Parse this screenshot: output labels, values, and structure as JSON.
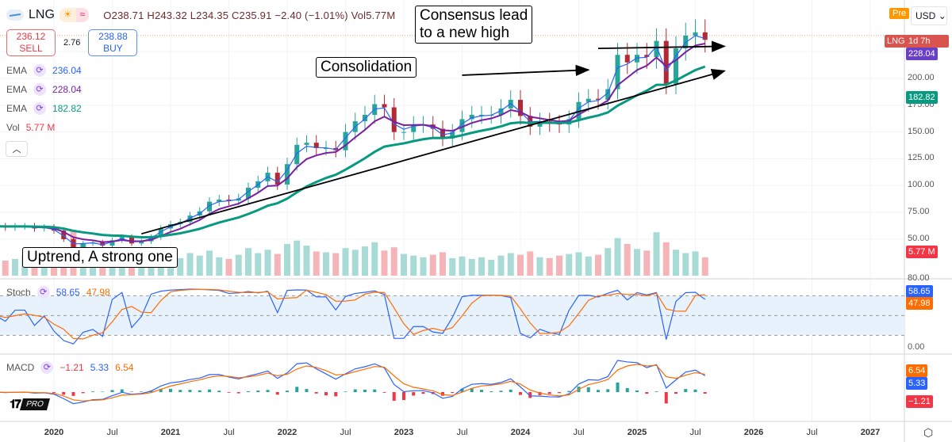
{
  "header": {
    "symbol": "LNG",
    "open": "O238.71",
    "high": "H243.32",
    "low": "L234.35",
    "close": "C235.91",
    "change": "−2.40 (−1.01%)",
    "volume": "Vol5.77M",
    "icons": [
      "sun-icon",
      "wave-icon"
    ]
  },
  "trade": {
    "sell_price": "236.12",
    "sell_label": "SELL",
    "spread": "2.76",
    "buy_price": "238.88",
    "buy_label": "BUY"
  },
  "legend": {
    "ema1_label": "EMA",
    "ema1": "236.04",
    "ema2_label": "EMA",
    "ema2": "228.04",
    "ema3_label": "EMA",
    "ema3": "182.82",
    "vol_label": "Vol",
    "vol": "5.77 M",
    "stoch_label": "Stoch",
    "stoch_k": "58.65",
    "stoch_d": "47.98",
    "macd_label": "MACD",
    "macd_hist": "−1.21",
    "macd_line": "5.33",
    "macd_signal": "6.54"
  },
  "annotations": {
    "consensus": "Consensus lead\nto a new high",
    "consolidation": "Consolidation",
    "uptrend": "Uptrend, A strong one"
  },
  "right_axis": {
    "pre_badge": "Pre",
    "currency": "USD",
    "sym_tag": "LNG",
    "countdown": "1d 7h",
    "ema2_tag": "228.04",
    "ema3_tag": "182.82",
    "vol_tag": "5.77 M",
    "stoch_k_tag": "58.65",
    "stoch_d_tag": "47.98",
    "macd_signal_tag": "6.54",
    "macd_line_tag": "5.33",
    "macd_hist_tag": "−1.21"
  },
  "branding": {
    "logo_text": "17",
    "pro": "PRO"
  },
  "colors": {
    "up": "#26a69a",
    "down": "#b22833",
    "ema1": "#2962ff",
    "ema2": "#7b1fa2",
    "ema3": "#089981",
    "stoch_k": "#2962ff",
    "stoch_d": "#ff6d00"
  },
  "chart_data": {
    "type": "candlestick",
    "title": "LNG",
    "interval": "monthly approximation",
    "start": "2019-07",
    "price_ticks": [
      50,
      75,
      100,
      125,
      150,
      175,
      200
    ],
    "stoch_ticks": [
      "80.00",
      "0.00"
    ],
    "x_ticks": [
      "2020",
      "Jul",
      "2021",
      "Jul",
      "2022",
      "Jul",
      "2023",
      "Jul",
      "2024",
      "Jul",
      "2025",
      "Jul",
      "2026",
      "Jul",
      "2027"
    ],
    "x_tick_years": [
      2020,
      2020.5,
      2021,
      2021.5,
      2022,
      2022.5,
      2023,
      2023.5,
      2024,
      2024.5,
      2025,
      2025.5,
      2026,
      2026.5,
      2027
    ],
    "close": [
      62,
      61,
      62,
      62,
      60,
      61,
      58,
      50,
      42,
      46,
      47,
      44,
      49,
      52,
      46,
      48,
      52,
      60,
      64,
      66,
      72,
      76,
      85,
      87,
      86,
      88,
      98,
      104,
      112,
      101,
      120,
      138,
      140,
      135,
      135,
      133,
      150,
      160,
      166,
      176,
      173,
      150,
      150,
      157,
      157,
      153,
      144,
      150,
      162,
      166,
      166,
      166,
      172,
      180,
      165,
      155,
      160,
      158,
      157,
      162,
      178,
      181,
      180,
      190,
      222,
      215,
      222,
      220,
      235,
      195,
      228,
      240,
      243,
      236
    ],
    "volume": [
      22,
      18,
      20,
      25,
      17,
      19,
      24,
      30,
      55,
      38,
      28,
      22,
      20,
      18,
      24,
      21,
      19,
      26,
      23,
      21,
      27,
      24,
      30,
      22,
      20,
      25,
      33,
      27,
      31,
      26,
      38,
      42,
      36,
      29,
      28,
      27,
      33,
      31,
      35,
      40,
      30,
      34,
      26,
      24,
      22,
      25,
      28,
      21,
      23,
      20,
      22,
      19,
      24,
      27,
      25,
      29,
      22,
      21,
      24,
      26,
      28,
      23,
      25,
      33,
      45,
      38,
      32,
      30,
      52,
      40,
      31,
      27,
      29,
      22
    ],
    "trendlines": [
      {
        "name": "uptrend-line",
        "from": [
          "2020-10",
          55
        ],
        "to": [
          "2025-10",
          207
        ]
      },
      {
        "name": "consensus-arrow",
        "from": [
          "2024-09",
          228
        ],
        "to": [
          "2025-10",
          230
        ]
      },
      {
        "name": "consolidation-arrow",
        "from": [
          "2023-07",
          203
        ],
        "to": [
          "2024-08",
          208
        ]
      }
    ]
  }
}
